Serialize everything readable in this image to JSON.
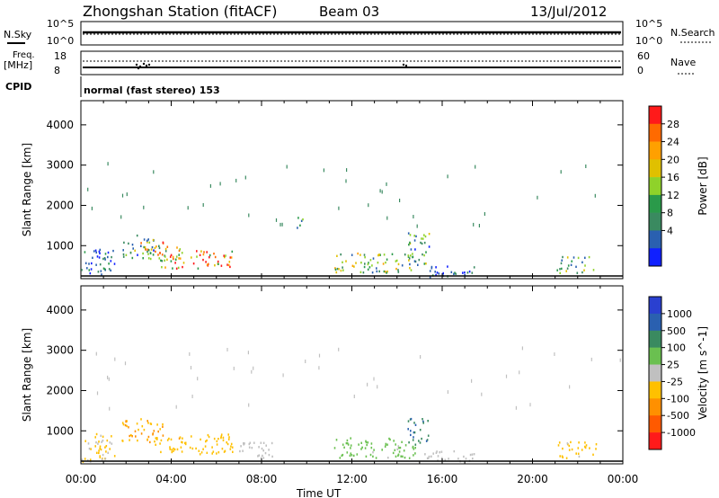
{
  "header": {
    "station": "Zhongshan Station (fitACF)",
    "beam": "Beam 03",
    "date": "13/Jul/2012"
  },
  "strips": {
    "nsky_label": "N.Sky",
    "nsky_ticks": [
      "10^5",
      "10^0"
    ],
    "nsearch_label": "N.Search",
    "nsearch_ticks": [
      "10^5",
      "10^0"
    ],
    "freq_label": "Freq.",
    "freq_unit": "[MHz]",
    "freq_ticks": [
      "18",
      "8"
    ],
    "nave_label": "Nave",
    "nave_ticks": [
      "60",
      "0"
    ],
    "cpid_label": "CPID",
    "cpid_text": "normal (fast stereo) 153"
  },
  "chart_data": [
    {
      "type": "heatmap",
      "title": "",
      "xlabel": "Time UT",
      "ylabel": "Slant Range [km]",
      "xlim": [
        0,
        24
      ],
      "ylim": [
        180,
        4600
      ],
      "x_ticks": [
        "00:00",
        "04:00",
        "08:00",
        "12:00",
        "16:00",
        "20:00",
        "00:00"
      ],
      "y_ticks": [
        "1000",
        "2000",
        "3000",
        "4000"
      ],
      "colorbar": {
        "label": "Power [dB]",
        "ticks": [
          "28",
          "24",
          "20",
          "16",
          "12",
          "8",
          "4"
        ],
        "colors": [
          "#ff1a1a",
          "#ff6a00",
          "#ffa000",
          "#e0c000",
          "#8fd22a",
          "#2a9a4a",
          "#3a8a60",
          "#2a60b0",
          "#1020ff"
        ],
        "range": [
          0,
          30
        ]
      },
      "echo_regions": [
        {
          "t0": 0.0,
          "t1": 1.5,
          "r0": 200,
          "r1": 900,
          "level": 6
        },
        {
          "t0": 1.8,
          "t1": 3.2,
          "r0": 600,
          "r1": 1250,
          "level": 10
        },
        {
          "t0": 2.6,
          "t1": 4.4,
          "r0": 600,
          "r1": 1100,
          "level": 18
        },
        {
          "t0": 3.5,
          "t1": 6.7,
          "r0": 400,
          "r1": 850,
          "level": 22
        },
        {
          "t0": 9.3,
          "t1": 9.8,
          "r0": 1400,
          "r1": 1700,
          "level": 9
        },
        {
          "t0": 11.2,
          "t1": 14.8,
          "r0": 300,
          "r1": 800,
          "level": 14
        },
        {
          "t0": 14.4,
          "t1": 15.4,
          "r0": 500,
          "r1": 1300,
          "level": 10
        },
        {
          "t0": 15.2,
          "t1": 17.4,
          "r0": 200,
          "r1": 500,
          "level": 6
        },
        {
          "t0": 21.0,
          "t1": 22.8,
          "r0": 300,
          "r1": 700,
          "level": 10
        }
      ]
    },
    {
      "type": "heatmap",
      "title": "",
      "xlabel": "Time UT",
      "ylabel": "Slant Range [km]",
      "xlim": [
        0,
        24
      ],
      "ylim": [
        180,
        4600
      ],
      "x_ticks": [
        "00:00",
        "04:00",
        "08:00",
        "12:00",
        "16:00",
        "20:00",
        "00:00"
      ],
      "y_ticks": [
        "1000",
        "2000",
        "3000",
        "4000"
      ],
      "colorbar": {
        "label": "Velocity [m s^-1]",
        "ticks": [
          "1000",
          "500",
          "100",
          "25",
          "-25",
          "-100",
          "-500",
          "-1000"
        ],
        "colors": [
          "#2a40d0",
          "#2a60b0",
          "#3a8a60",
          "#6ac050",
          "#c0c0c0",
          "#ffc000",
          "#ff9000",
          "#ff5a00",
          "#ff1a1a"
        ],
        "range": [
          -1200,
          1200
        ]
      },
      "echo_regions": [
        {
          "t0": 0.0,
          "t1": 1.5,
          "r0": 200,
          "r1": 900,
          "level": -150
        },
        {
          "t0": 1.8,
          "t1": 3.6,
          "r0": 700,
          "r1": 1300,
          "level": -400
        },
        {
          "t0": 3.0,
          "t1": 6.7,
          "r0": 400,
          "r1": 900,
          "level": -300
        },
        {
          "t0": 7.0,
          "t1": 8.5,
          "r0": 300,
          "r1": 700,
          "level": 60
        },
        {
          "t0": 11.2,
          "t1": 14.8,
          "r0": 300,
          "r1": 800,
          "level": 200
        },
        {
          "t0": 14.4,
          "t1": 15.4,
          "r0": 600,
          "r1": 1300,
          "level": 600
        },
        {
          "t0": 15.2,
          "t1": 17.4,
          "r0": 200,
          "r1": 500,
          "level": -80
        },
        {
          "t0": 21.0,
          "t1": 22.8,
          "r0": 300,
          "r1": 700,
          "level": -200
        }
      ]
    }
  ]
}
